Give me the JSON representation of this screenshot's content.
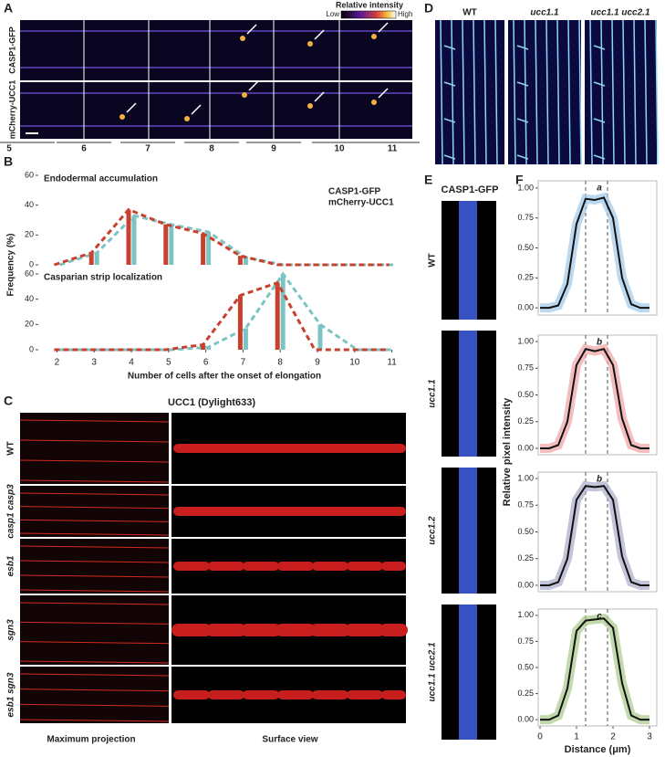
{
  "panels": {
    "A": {
      "letter": "A",
      "colorbar_title": "Relative intensity",
      "colorbar_low": "Low",
      "colorbar_high": "High",
      "rows": [
        "CASP1-GFP",
        "mCherry-UCC1"
      ],
      "cell_numbers": [
        "5",
        "6",
        "7",
        "8",
        "9",
        "10",
        "11"
      ]
    },
    "B": {
      "letter": "B",
      "y_label": "Frequency (%)",
      "x_label": "Number of cells after the onset of elongation"
    },
    "C": {
      "letter": "C",
      "title": "UCC1 (Dylight633)",
      "rows": [
        "WT",
        "casp1 casp3",
        "esb1",
        "sgn3",
        "esb1 sgn3"
      ],
      "columns": [
        "Maximum projection",
        "Surface view"
      ]
    },
    "D": {
      "letter": "D",
      "columns": [
        "WT",
        "ucc1.1",
        "ucc1.1 ucc2.1"
      ]
    },
    "E": {
      "letter": "E",
      "title": "CASP1-GFP",
      "rows": [
        "WT",
        "ucc1.1",
        "ucc1.2",
        "ucc1.1 ucc2.1"
      ]
    },
    "F": {
      "letter": "F",
      "y_label": "Relative pixel intensity",
      "x_label": "Distance (μm)"
    }
  },
  "chart_data": [
    {
      "type": "bar",
      "title": "Endodermal accumulation",
      "x": [
        2,
        3,
        4,
        5,
        6,
        7,
        8,
        9,
        10,
        11
      ],
      "xlim": [
        1.5,
        11.5
      ],
      "ylim": [
        0,
        60
      ],
      "yticks": [
        0,
        20,
        40,
        60
      ],
      "series": [
        {
          "name": "CASP1-GFP",
          "color": "#7cc4c4",
          "values": [
            0,
            8,
            33,
            27,
            22,
            5,
            0,
            0,
            0,
            0
          ]
        },
        {
          "name": "mCherry-UCC1",
          "color": "#c8412e",
          "values": [
            0,
            8,
            37,
            27,
            21,
            6,
            0,
            0,
            0,
            0
          ]
        }
      ]
    },
    {
      "type": "bar",
      "title": "Casparian strip localization",
      "x": [
        2,
        3,
        4,
        5,
        6,
        7,
        8,
        9,
        10,
        11
      ],
      "xlim": [
        1.5,
        11.5
      ],
      "ylim": [
        0,
        60
      ],
      "yticks": [
        0,
        20,
        40,
        60
      ],
      "xticks": [
        2,
        3,
        4,
        5,
        6,
        7,
        8,
        9,
        10,
        11
      ],
      "series": [
        {
          "color": "#7cc4c4",
          "values": [
            0,
            0,
            0,
            0,
            2,
            17,
            60,
            20,
            0,
            0
          ]
        },
        {
          "color": "#c8412e",
          "values": [
            0,
            0,
            0,
            0,
            4,
            43,
            53,
            0,
            0,
            0
          ]
        }
      ]
    },
    {
      "type": "line",
      "annotation": "a",
      "color": "#9cc7ea",
      "x": [
        0,
        0.25,
        0.5,
        0.75,
        1,
        1.25,
        1.5,
        1.75,
        2,
        2.25,
        2.5,
        2.75,
        3
      ],
      "values": [
        0,
        0,
        0.02,
        0.2,
        0.7,
        0.91,
        0.9,
        0.92,
        0.75,
        0.25,
        0.03,
        0,
        0
      ],
      "vlines": [
        1.25,
        1.85
      ],
      "xlim": [
        -0.05,
        3.2
      ],
      "ylim": [
        -0.06,
        1.06
      ],
      "yticks": [
        {
          "value": 0,
          "label": "0.00"
        },
        {
          "value": 0.25,
          "label": "0.25"
        },
        {
          "value": 0.5,
          "label": "0.50"
        },
        {
          "value": 0.75,
          "label": "0.75"
        },
        {
          "value": 1,
          "label": "1.00"
        }
      ]
    },
    {
      "type": "line",
      "annotation": "b",
      "color": "#f0a3a3",
      "x": [
        0,
        0.25,
        0.5,
        0.75,
        1,
        1.25,
        1.5,
        1.75,
        2,
        2.25,
        2.5,
        2.75,
        3
      ],
      "values": [
        0,
        0,
        0.03,
        0.25,
        0.78,
        0.93,
        0.91,
        0.93,
        0.78,
        0.28,
        0.03,
        0,
        0
      ],
      "vlines": [
        1.25,
        1.85
      ],
      "xlim": [
        -0.05,
        3.2
      ],
      "ylim": [
        -0.06,
        1.06
      ],
      "yticks": [
        {
          "value": 0,
          "label": "0.00"
        },
        {
          "value": 0.25,
          "label": "0.25"
        },
        {
          "value": 0.5,
          "label": "0.50"
        },
        {
          "value": 0.75,
          "label": "0.75"
        },
        {
          "value": 1,
          "label": "1.00"
        }
      ]
    },
    {
      "type": "line",
      "annotation": "b",
      "color": "#a9a9c9",
      "x": [
        0,
        0.25,
        0.5,
        0.75,
        1,
        1.25,
        1.5,
        1.75,
        2,
        2.25,
        2.5,
        2.75,
        3
      ],
      "values": [
        0,
        0,
        0.03,
        0.25,
        0.8,
        0.93,
        0.92,
        0.93,
        0.8,
        0.27,
        0.03,
        0,
        0
      ],
      "vlines": [
        1.25,
        1.85
      ],
      "xlim": [
        -0.05,
        3.2
      ],
      "ylim": [
        -0.06,
        1.06
      ],
      "yticks": [
        {
          "value": 0,
          "label": "0.00"
        },
        {
          "value": 0.25,
          "label": "0.25"
        },
        {
          "value": 0.5,
          "label": "0.50"
        },
        {
          "value": 0.75,
          "label": "0.75"
        },
        {
          "value": 1,
          "label": "1.00"
        }
      ]
    },
    {
      "type": "line",
      "annotation": "c",
      "color": "#a8c98a",
      "x": [
        0,
        0.25,
        0.5,
        0.75,
        1,
        1.25,
        1.5,
        1.75,
        2,
        2.25,
        2.5,
        2.75,
        3
      ],
      "values": [
        0,
        0,
        0.04,
        0.3,
        0.85,
        0.95,
        0.96,
        0.97,
        0.88,
        0.35,
        0.04,
        0,
        0
      ],
      "vlines": [
        1.25,
        1.85
      ],
      "xlim": [
        -0.05,
        3.2
      ],
      "ylim": [
        -0.06,
        1.06
      ],
      "yticks": [
        {
          "value": 0,
          "label": "0.00"
        },
        {
          "value": 0.25,
          "label": "0.25"
        },
        {
          "value": 0.5,
          "label": "0.50"
        },
        {
          "value": 0.75,
          "label": "0.75"
        },
        {
          "value": 1,
          "label": "1.00"
        }
      ],
      "xticks": [
        0,
        1,
        2,
        3
      ]
    }
  ]
}
